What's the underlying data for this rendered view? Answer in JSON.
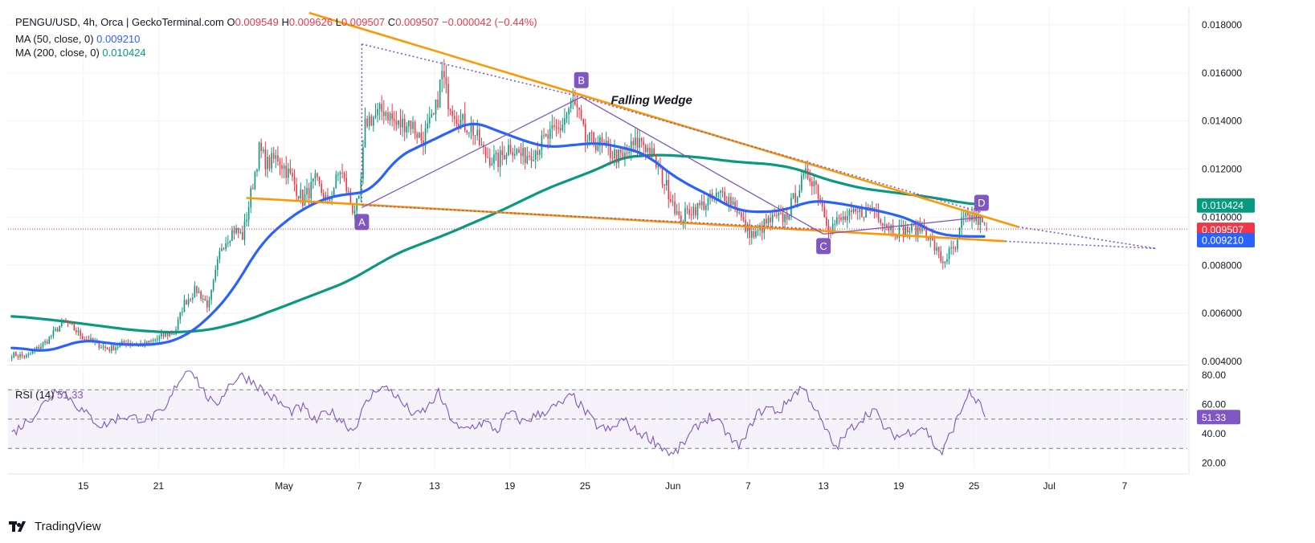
{
  "legend": {
    "symbol": "PENGU/USD, 4h, Orca | GeckoTerminal.com",
    "o_label": "O",
    "o_value": "0.009549",
    "h_label": "H",
    "h_value": "0.009626",
    "l_label": "L",
    "l_value": "0.009507",
    "c_label": "C",
    "c_value": "0.009507",
    "change": "−0.000042 (−0.44%)",
    "ma50_label": "MA (50, close, 0)",
    "ma50_value": "0.009210",
    "ma200_label": "MA (200, close, 0)",
    "ma200_value": "0.010424",
    "rsi_label": "RSI (14)",
    "rsi_value": "51.33"
  },
  "brand": {
    "name": "TradingView"
  },
  "colors": {
    "up": "#089981",
    "down": "#f23645",
    "ma50": "#2962ff",
    "ma200": "#089981",
    "wedge": "#ff9800",
    "pattern": "#7e57c2",
    "rsi": "#7e57c2",
    "rsi_band": "#ede7f6"
  },
  "chart_data": {
    "type": "candlestick",
    "annotation": "Falling Wedge",
    "price_axis": {
      "ticks": [
        "0.018000",
        "0.016000",
        "0.014000",
        "0.012000",
        "0.010000",
        "0.008000",
        "0.006000",
        "0.004000"
      ],
      "tick_values": [
        0.018,
        0.016,
        0.014,
        0.012,
        0.01,
        0.008,
        0.006,
        0.004
      ],
      "range": [
        0.0039,
        0.0187
      ]
    },
    "price_labels": [
      {
        "text": "0.010424",
        "value": 0.010424,
        "color": "#089981"
      },
      {
        "text": "0.009507",
        "value": 0.009507,
        "color": "#f23645"
      },
      {
        "text": "0.009210",
        "value": 0.00921,
        "color": "#2962ff"
      }
    ],
    "time_axis": {
      "labels": [
        "15",
        "21",
        "May",
        "7",
        "13",
        "19",
        "25",
        "Jun",
        "7",
        "13",
        "19",
        "25",
        "Jul",
        "7"
      ],
      "label_days": [
        15,
        21,
        31,
        37,
        43,
        49,
        55,
        62,
        68,
        74,
        80,
        86,
        92,
        98
      ],
      "range_days": [
        9,
        103
      ],
      "last_bar_day": 87
    },
    "price_anchors": [
      [
        9.3,
        0.0043
      ],
      [
        10.5,
        0.0042
      ],
      [
        12,
        0.0048
      ],
      [
        13.5,
        0.0057
      ],
      [
        15,
        0.005
      ],
      [
        17,
        0.0045
      ],
      [
        18.5,
        0.0048
      ],
      [
        20,
        0.0047
      ],
      [
        21.5,
        0.0051
      ],
      [
        22.3,
        0.0052
      ],
      [
        23,
        0.0064
      ],
      [
        24,
        0.007
      ],
      [
        25,
        0.0063
      ],
      [
        26,
        0.0088
      ],
      [
        27,
        0.0095
      ],
      [
        27.7,
        0.0092
      ],
      [
        28.3,
        0.0108
      ],
      [
        29,
        0.0128
      ],
      [
        29.7,
        0.0122
      ],
      [
        30.5,
        0.0125
      ],
      [
        31.5,
        0.0117
      ],
      [
        32.5,
        0.0107
      ],
      [
        33.5,
        0.0115
      ],
      [
        34.5,
        0.0106
      ],
      [
        35.5,
        0.012
      ],
      [
        36.5,
        0.0103
      ],
      [
        37,
        0.0106
      ],
      [
        37.5,
        0.014
      ],
      [
        38.3,
        0.0142
      ],
      [
        39,
        0.0145
      ],
      [
        40,
        0.0138
      ],
      [
        41,
        0.014
      ],
      [
        42,
        0.0132
      ],
      [
        43,
        0.0142
      ],
      [
        43.6,
        0.016
      ],
      [
        44,
        0.015
      ],
      [
        45,
        0.014
      ],
      [
        46,
        0.0137
      ],
      [
        47,
        0.0126
      ],
      [
        48,
        0.0123
      ],
      [
        49,
        0.013
      ],
      [
        50,
        0.0125
      ],
      [
        51,
        0.0128
      ],
      [
        52,
        0.0133
      ],
      [
        53,
        0.0137
      ],
      [
        54,
        0.0148
      ],
      [
        54.5,
        0.0142
      ],
      [
        55,
        0.0132
      ],
      [
        56,
        0.0131
      ],
      [
        57,
        0.0127
      ],
      [
        58,
        0.0124
      ],
      [
        58.7,
        0.0129
      ],
      [
        59.5,
        0.0132
      ],
      [
        60.3,
        0.0126
      ],
      [
        61,
        0.0118
      ],
      [
        62,
        0.0107
      ],
      [
        62.5,
        0.0098
      ],
      [
        63.3,
        0.0103
      ],
      [
        64,
        0.0104
      ],
      [
        65,
        0.0107
      ],
      [
        66,
        0.011
      ],
      [
        67,
        0.0105
      ],
      [
        67.7,
        0.0096
      ],
      [
        68.5,
        0.0092
      ],
      [
        69.3,
        0.0097
      ],
      [
        70,
        0.0099
      ],
      [
        71,
        0.01
      ],
      [
        72,
        0.0112
      ],
      [
        72.7,
        0.0118
      ],
      [
        73.3,
        0.0115
      ],
      [
        74,
        0.0103
      ],
      [
        74.5,
        0.0095
      ],
      [
        75,
        0.0098
      ],
      [
        76,
        0.01
      ],
      [
        77,
        0.0102
      ],
      [
        78,
        0.0104
      ],
      [
        79,
        0.0097
      ],
      [
        80,
        0.0094
      ],
      [
        81,
        0.0095
      ],
      [
        82,
        0.0096
      ],
      [
        83,
        0.0086
      ],
      [
        83.5,
        0.0081
      ],
      [
        84,
        0.0085
      ],
      [
        84.6,
        0.0087
      ],
      [
        85,
        0.0098
      ],
      [
        85.6,
        0.01
      ],
      [
        86.3,
        0.0099
      ],
      [
        87,
        0.0095
      ]
    ],
    "ma50_anchors": [
      [
        9.3,
        0.0046
      ],
      [
        12,
        0.0044
      ],
      [
        15,
        0.0049
      ],
      [
        18,
        0.0047
      ],
      [
        21,
        0.0047
      ],
      [
        23,
        0.005
      ],
      [
        25,
        0.0058
      ],
      [
        27,
        0.007
      ],
      [
        29,
        0.0088
      ],
      [
        31,
        0.0098
      ],
      [
        33,
        0.0105
      ],
      [
        35,
        0.0109
      ],
      [
        37,
        0.011
      ],
      [
        38,
        0.0111
      ],
      [
        40,
        0.0125
      ],
      [
        42,
        0.013
      ],
      [
        44,
        0.0135
      ],
      [
        46,
        0.014
      ],
      [
        48,
        0.0136
      ],
      [
        50,
        0.0132
      ],
      [
        52,
        0.0129
      ],
      [
        54,
        0.013
      ],
      [
        56,
        0.0131
      ],
      [
        58,
        0.0129
      ],
      [
        60,
        0.0126
      ],
      [
        61,
        0.0121
      ],
      [
        63,
        0.0114
      ],
      [
        65,
        0.0109
      ],
      [
        67,
        0.0103
      ],
      [
        69,
        0.0102
      ],
      [
        71,
        0.0103
      ],
      [
        73,
        0.0107
      ],
      [
        75,
        0.0106
      ],
      [
        77,
        0.0104
      ],
      [
        79,
        0.0102
      ],
      [
        81,
        0.0099
      ],
      [
        83,
        0.0093
      ],
      [
        85,
        0.0092
      ],
      [
        87,
        0.0092
      ]
    ],
    "ma200_anchors": [
      [
        9.3,
        0.0059
      ],
      [
        13,
        0.0057
      ],
      [
        16,
        0.0055
      ],
      [
        19,
        0.0053
      ],
      [
        22,
        0.0052
      ],
      [
        25,
        0.0053
      ],
      [
        28,
        0.0057
      ],
      [
        32,
        0.0065
      ],
      [
        36,
        0.0073
      ],
      [
        40,
        0.0085
      ],
      [
        44,
        0.0093
      ],
      [
        48,
        0.0102
      ],
      [
        52,
        0.0112
      ],
      [
        56,
        0.012
      ],
      [
        58,
        0.0125
      ],
      [
        61,
        0.0126
      ],
      [
        64,
        0.0125
      ],
      [
        67,
        0.0123
      ],
      [
        70,
        0.0122
      ],
      [
        72,
        0.012
      ],
      [
        74,
        0.0116
      ],
      [
        77,
        0.0112
      ],
      [
        80,
        0.011
      ],
      [
        83,
        0.0108
      ],
      [
        85,
        0.0106
      ],
      [
        87,
        0.0105
      ]
    ],
    "wedge_lines": [
      {
        "from": [
          33,
          0.0185
        ],
        "to": [
          89.5,
          0.0096
        ],
        "style": "solid"
      },
      {
        "from": [
          28,
          0.0108
        ],
        "to": [
          88.5,
          0.009
        ],
        "style": "solid"
      },
      {
        "from": [
          88.5,
          0.009
        ],
        "to": [
          100.5,
          0.0087
        ],
        "style": "dotted"
      },
      {
        "from": [
          89.5,
          0.0096
        ],
        "to": [
          100.5,
          0.0087
        ],
        "style": "dotted"
      }
    ],
    "dotted_lines": [
      {
        "from": [
          37.2,
          0.0172
        ],
        "to": [
          54.7,
          0.015
        ]
      },
      {
        "from": [
          37.2,
          0.0172
        ],
        "to": [
          37.2,
          0.0105
        ]
      },
      {
        "from": [
          37.2,
          0.0105
        ],
        "to": [
          73.8,
          0.0095
        ]
      },
      {
        "from": [
          54.7,
          0.015
        ],
        "to": [
          86.6,
          0.0102
        ]
      }
    ],
    "pattern_points": [
      {
        "label": "A",
        "day": 37.2,
        "value": 0.0104,
        "marker": 0.0098
      },
      {
        "label": "B",
        "day": 54.7,
        "value": 0.015,
        "marker": 0.0157
      },
      {
        "label": "C",
        "day": 74.0,
        "value": 0.0093,
        "marker": 0.0088
      },
      {
        "label": "D",
        "day": 86.6,
        "value": 0.01,
        "marker": 0.0106
      }
    ],
    "rsi": {
      "axis_ticks": [
        "80.00",
        "60.00",
        "40.00",
        "20.00"
      ],
      "tick_values": [
        80,
        60,
        40,
        20
      ],
      "range": [
        17,
        86
      ],
      "band": [
        30,
        70
      ],
      "midline": 50,
      "current": 51.33,
      "anchors": [
        [
          9.3,
          40
        ],
        [
          11,
          52
        ],
        [
          13,
          72
        ],
        [
          15,
          55
        ],
        [
          16.5,
          45
        ],
        [
          18,
          52
        ],
        [
          20,
          50
        ],
        [
          21.5,
          55
        ],
        [
          22.5,
          75
        ],
        [
          23.5,
          86
        ],
        [
          24.5,
          70
        ],
        [
          25.5,
          58
        ],
        [
          26.5,
          72
        ],
        [
          27.5,
          80
        ],
        [
          28.5,
          76
        ],
        [
          29.5,
          68
        ],
        [
          30.5,
          62
        ],
        [
          31.5,
          55
        ],
        [
          32.5,
          58
        ],
        [
          33.5,
          48
        ],
        [
          34.5,
          56
        ],
        [
          35.5,
          50
        ],
        [
          36.5,
          42
        ],
        [
          37.5,
          60
        ],
        [
          38.5,
          72
        ],
        [
          39.5,
          70
        ],
        [
          40.5,
          60
        ],
        [
          41.5,
          52
        ],
        [
          42.5,
          58
        ],
        [
          43.3,
          68
        ],
        [
          44,
          55
        ],
        [
          45,
          42
        ],
        [
          46,
          45
        ],
        [
          47,
          48
        ],
        [
          48,
          42
        ],
        [
          49,
          55
        ],
        [
          50,
          48
        ],
        [
          51,
          52
        ],
        [
          52,
          56
        ],
        [
          53,
          60
        ],
        [
          54,
          66
        ],
        [
          55,
          55
        ],
        [
          56,
          45
        ],
        [
          57,
          42
        ],
        [
          58,
          50
        ],
        [
          59,
          42
        ],
        [
          60,
          38
        ],
        [
          61,
          32
        ],
        [
          62,
          25
        ],
        [
          63,
          35
        ],
        [
          64,
          46
        ],
        [
          65,
          52
        ],
        [
          66,
          44
        ],
        [
          67,
          32
        ],
        [
          67.7,
          35
        ],
        [
          68.5,
          52
        ],
        [
          69.5,
          58
        ],
        [
          70.5,
          55
        ],
        [
          71.5,
          66
        ],
        [
          72.3,
          72
        ],
        [
          73,
          63
        ],
        [
          74,
          45
        ],
        [
          75,
          30
        ],
        [
          76,
          42
        ],
        [
          77,
          50
        ],
        [
          78,
          57
        ],
        [
          79,
          42
        ],
        [
          80,
          38
        ],
        [
          81,
          42
        ],
        [
          82,
          45
        ],
        [
          83,
          30
        ],
        [
          83.5,
          27
        ],
        [
          84,
          38
        ],
        [
          85,
          56
        ],
        [
          85.5,
          68
        ],
        [
          86.3,
          62
        ],
        [
          87,
          51
        ]
      ]
    }
  }
}
